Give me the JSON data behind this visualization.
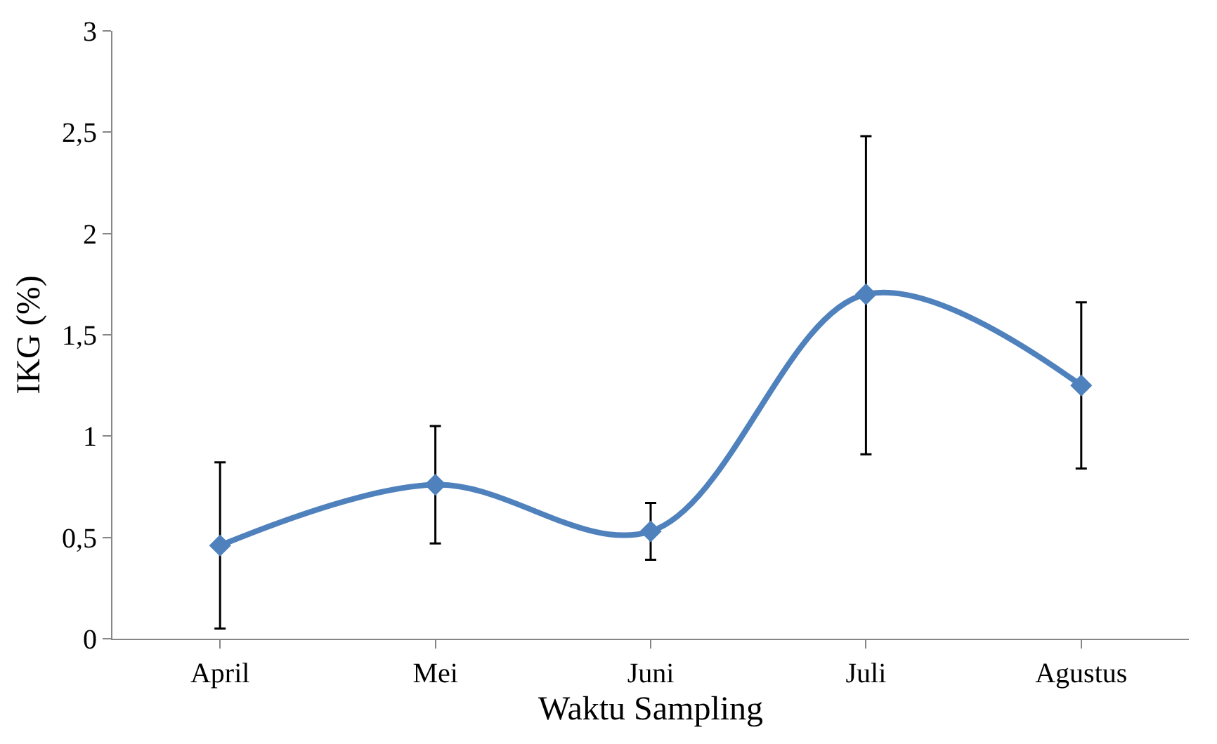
{
  "chart_data": {
    "type": "line",
    "xlabel": "Waktu Sampling",
    "ylabel": "IKG (%)",
    "categories": [
      "April",
      "Mei",
      "Juni",
      "Juli",
      "Agustus"
    ],
    "series": [
      {
        "color": "#4f81bd",
        "values": [
          0.46,
          0.76,
          0.53,
          1.7,
          1.25
        ],
        "errors": [
          [
            0.05,
            0.87
          ],
          [
            0.47,
            1.05
          ],
          [
            0.39,
            0.67
          ],
          [
            0.91,
            2.48
          ],
          [
            0.84,
            1.66
          ]
        ]
      }
    ],
    "ylim": [
      0,
      3
    ],
    "yticks": [
      0,
      {
        "value": 0.5,
        "label": "0,5"
      },
      1,
      {
        "value": 1.5,
        "label": "1,5"
      },
      2,
      {
        "value": 2.5,
        "label": "2,5"
      },
      3
    ],
    "marker": "diamond",
    "line_style": "solid"
  }
}
